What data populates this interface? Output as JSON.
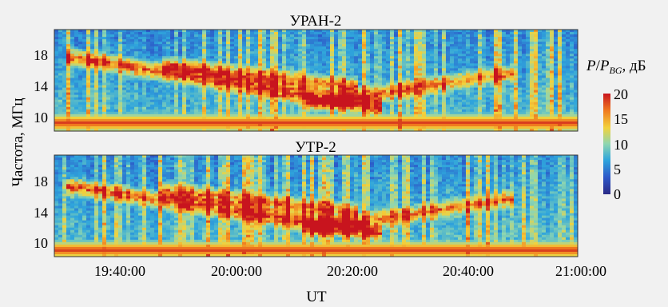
{
  "chart_data": {
    "type": "heatmap",
    "xlabel": "UT",
    "ylabel": "Частота, МГц",
    "x_ticks": [
      "19:40:00",
      "20:00:00",
      "20:20:00",
      "20:40:00",
      "21:00:00"
    ],
    "xlim": [
      "19:29:00",
      "21:00:00"
    ],
    "colorbar": {
      "label": "P/P_BG, дБ",
      "range": [
        0,
        20
      ],
      "ticks": [
        "20",
        "15",
        "10",
        "5",
        "0"
      ],
      "colormap": [
        "#2a2a86",
        "#2d58c8",
        "#2fa5dc",
        "#8fd6b0",
        "#f2d23c",
        "#f07a1e",
        "#c8141e"
      ]
    },
    "panels": [
      {
        "title": "УРАН-2",
        "y_ticks": [
          "18",
          "14",
          "10"
        ],
        "ylim": [
          8.5,
          21
        ],
        "features": [
          {
            "kind": "drift_burst",
            "f_start_mhz": 17.5,
            "f_end_mhz": 11.5,
            "t_start": "19:33",
            "t_end": "20:24",
            "intensity_db": 14
          },
          {
            "kind": "drift_burst",
            "f_start_mhz": 16.5,
            "f_end_mhz": 14.0,
            "t_start": "19:50",
            "t_end": "20:20",
            "intensity_db": 12
          },
          {
            "kind": "rising_band",
            "f_start_mhz": 12.0,
            "f_end_mhz": 15.5,
            "t_start": "20:15",
            "t_end": "20:47",
            "intensity_db": 11
          },
          {
            "kind": "interference_line",
            "f_mhz": 9.5,
            "intensity_db": 19
          }
        ]
      },
      {
        "title": "УТР-2",
        "y_ticks": [
          "18",
          "14",
          "10"
        ],
        "ylim": [
          8.5,
          21
        ],
        "features": [
          {
            "kind": "drift_burst",
            "f_start_mhz": 17.0,
            "f_end_mhz": 11.5,
            "t_start": "19:33",
            "t_end": "20:24",
            "intensity_db": 14
          },
          {
            "kind": "drift_burst",
            "f_start_mhz": 16.5,
            "f_end_mhz": 14.0,
            "t_start": "19:50",
            "t_end": "20:20",
            "intensity_db": 12
          },
          {
            "kind": "rising_band",
            "f_start_mhz": 12.0,
            "f_end_mhz": 15.5,
            "t_start": "20:15",
            "t_end": "20:47",
            "intensity_db": 11
          },
          {
            "kind": "interference_line",
            "f_mhz": 9.3,
            "intensity_db": 19
          }
        ]
      }
    ]
  }
}
